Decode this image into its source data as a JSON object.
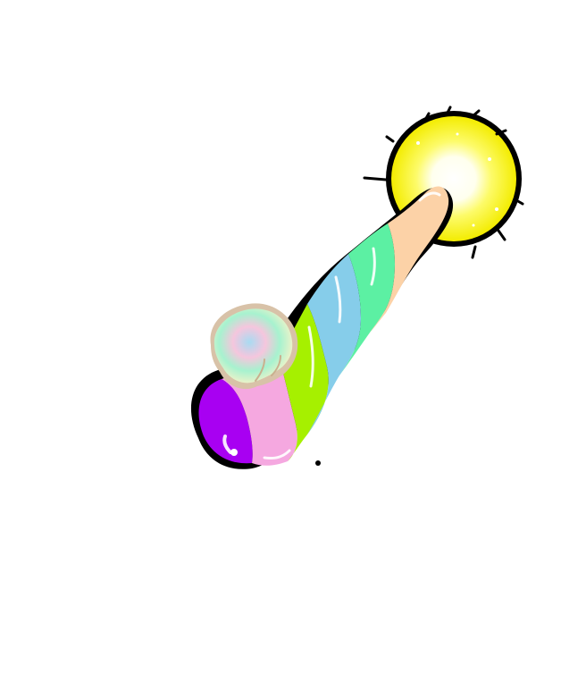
{
  "illustration": {
    "subject": "rainbow-unicorn-horn-wand",
    "background_color": "#ffffff",
    "outline_color": "#000000",
    "glow": {
      "core_color": "#ffffff",
      "mid_color": "#fdfb6a",
      "outer_color": "#f3ec00"
    },
    "stripe_colors": {
      "purple": "#a800f2",
      "pink": "#f5a8e0",
      "lime": "#a6f000",
      "sky_blue": "#86cdea",
      "mint": "#5cf0a3",
      "peach": "#fcd2a7"
    },
    "paw_colors": {
      "mint": "#a7f2cf",
      "blue": "#a8dbf2",
      "pink": "#f5c6dd",
      "cream": "#fdf3c8",
      "outline": "#d8c2a8"
    }
  }
}
